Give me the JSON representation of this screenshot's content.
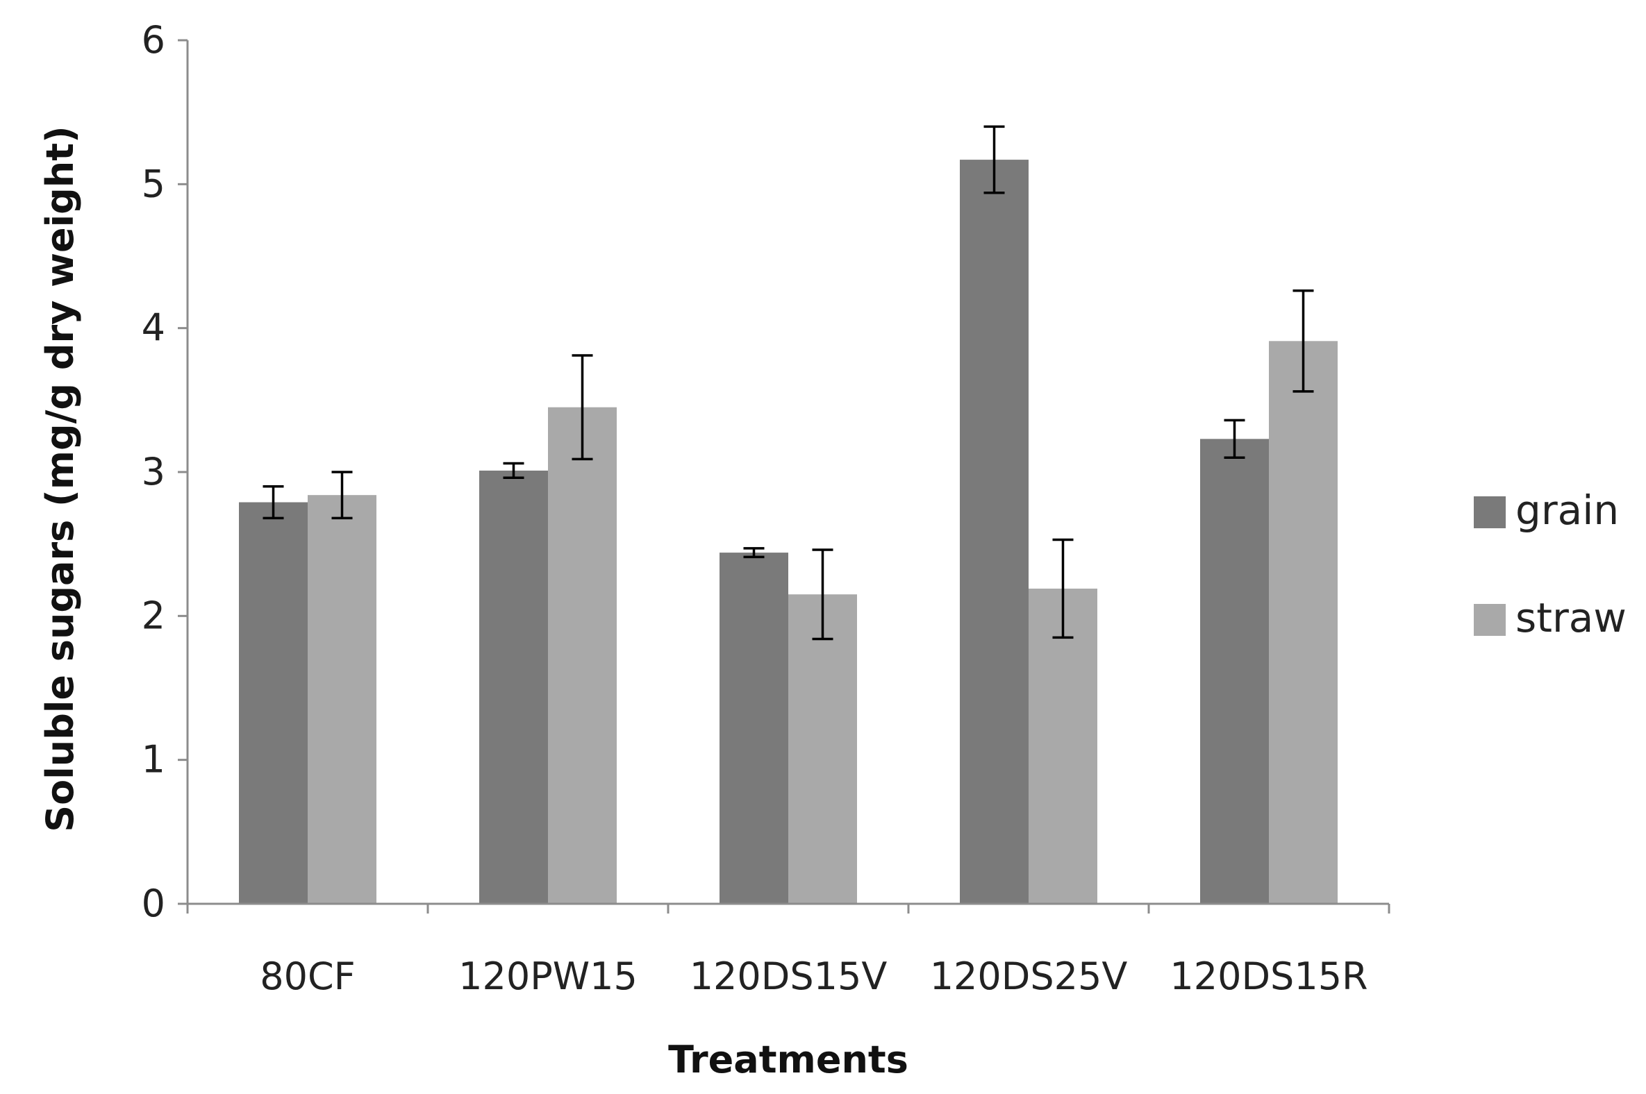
{
  "chart_data": {
    "type": "bar",
    "title": "",
    "xlabel": "Treatments",
    "ylabel": "Soluble sugars (mg/g dry weight)",
    "ylim": [
      0,
      6
    ],
    "yticks": [
      "0",
      "1",
      "2",
      "3",
      "4",
      "5",
      "6"
    ],
    "grid": false,
    "legend_position": "right",
    "categories": [
      "80CF",
      "120PW15",
      "120DS15V",
      "120DS25V",
      "120DS15R"
    ],
    "series": [
      {
        "name": "grain",
        "color": "#7a7a7a",
        "values": [
          2.79,
          3.01,
          2.44,
          5.17,
          3.23
        ],
        "errors": [
          0.11,
          0.05,
          0.03,
          0.23,
          0.13
        ]
      },
      {
        "name": "straw",
        "color": "#a9a9a9",
        "values": [
          2.84,
          3.45,
          2.15,
          2.19,
          3.91
        ],
        "errors": [
          0.16,
          0.36,
          0.31,
          0.34,
          0.35
        ]
      }
    ]
  }
}
